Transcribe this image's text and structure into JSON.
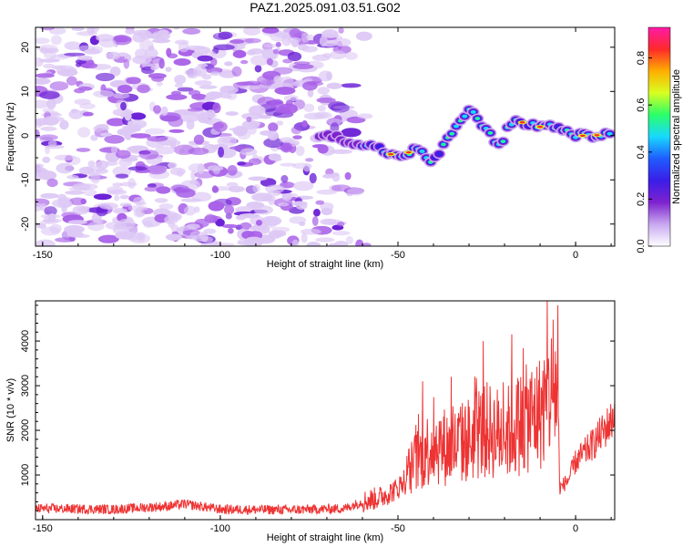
{
  "title": "PAZ1.2025.091.03.51.G02",
  "colors": {
    "snr_line": "#ee3333",
    "spectro_weak": "#ddc8f5",
    "spectro_mid": "#a860e8",
    "spectro_strong": "#6a1fd6",
    "colormap": [
      "#ffffff",
      "#c8a8f0",
      "#7e22ce",
      "#3b1de8",
      "#1f5cff",
      "#18d8ff",
      "#2bff6a",
      "#d8ff20",
      "#ffae00",
      "#ff2a2a",
      "#ff1aa8"
    ]
  },
  "chart_data": [
    {
      "type": "heatmap",
      "name": "spectrogram",
      "xlabel": "Height of straight line (km)",
      "ylabel": "Frequency (Hz)",
      "xlim": [
        -152,
        11
      ],
      "ylim": [
        -25,
        24.5
      ],
      "x_ticks": [
        -150,
        -100,
        -50,
        0
      ],
      "x_tick_labels": [
        "-150",
        "-100",
        "-50",
        "0"
      ],
      "y_ticks": [
        -20,
        -10,
        0,
        10,
        20
      ],
      "y_tick_labels": [
        "-20",
        "-10",
        "0",
        "10",
        "20"
      ],
      "noise_region_x": [
        -152,
        -60
      ],
      "signal_track": [
        {
          "x": -72,
          "y": 0.5
        },
        {
          "x": -62,
          "y": -1.5
        },
        {
          "x": -55,
          "y": -3
        },
        {
          "x": -50,
          "y": -5
        },
        {
          "x": -45,
          "y": -3
        },
        {
          "x": -40,
          "y": -6
        },
        {
          "x": -36,
          "y": -1
        },
        {
          "x": -33,
          "y": 3
        },
        {
          "x": -30,
          "y": 6
        },
        {
          "x": -27,
          "y": 3
        },
        {
          "x": -24,
          "y": 0
        },
        {
          "x": -21,
          "y": -3
        },
        {
          "x": -19,
          "y": 3
        },
        {
          "x": -15,
          "y": 3
        },
        {
          "x": -10,
          "y": 2
        },
        {
          "x": -5,
          "y": 2
        },
        {
          "x": 0,
          "y": 0
        },
        {
          "x": 5,
          "y": 0
        },
        {
          "x": 10,
          "y": 0.5
        }
      ],
      "colorbar": {
        "label": "Normalized spectral amplitude",
        "range": [
          0,
          0.93
        ],
        "ticks": [
          0,
          0.2,
          0.4,
          0.6,
          0.8
        ],
        "tick_labels": [
          "0.0",
          "0.2",
          "0.4",
          "0.6",
          "0.8"
        ]
      }
    },
    {
      "type": "line",
      "name": "snr",
      "xlabel": "Height of straight line (km)",
      "ylabel": "SNR (10 * v/v)",
      "xlim": [
        -152,
        11
      ],
      "ylim": [
        0,
        4900
      ],
      "x_ticks": [
        -150,
        -100,
        -50,
        0
      ],
      "x_tick_labels": [
        "-150",
        "-100",
        "-50",
        "0"
      ],
      "y_ticks": [
        1000,
        2000,
        3000,
        4000
      ],
      "y_tick_labels": [
        "1000",
        "2000",
        "3000",
        "4000"
      ],
      "envelope": [
        {
          "x": -152,
          "y": 250
        },
        {
          "x": -130,
          "y": 230
        },
        {
          "x": -115,
          "y": 300
        },
        {
          "x": -110,
          "y": 350
        },
        {
          "x": -100,
          "y": 230
        },
        {
          "x": -80,
          "y": 220
        },
        {
          "x": -65,
          "y": 250
        },
        {
          "x": -60,
          "y": 400
        },
        {
          "x": -55,
          "y": 500
        },
        {
          "x": -50,
          "y": 700
        },
        {
          "x": -45,
          "y": 1300
        },
        {
          "x": -40,
          "y": 1700
        },
        {
          "x": -35,
          "y": 1600
        },
        {
          "x": -30,
          "y": 1800
        },
        {
          "x": -25,
          "y": 2000
        },
        {
          "x": -20,
          "y": 1900
        },
        {
          "x": -15,
          "y": 2200
        },
        {
          "x": -10,
          "y": 2400
        },
        {
          "x": -7,
          "y": 2800
        },
        {
          "x": -5,
          "y": 3000
        },
        {
          "x": -4.5,
          "y": 700
        },
        {
          "x": -2,
          "y": 900
        },
        {
          "x": 0,
          "y": 1300
        },
        {
          "x": 5,
          "y": 1700
        },
        {
          "x": 10,
          "y": 2200
        },
        {
          "x": 11,
          "y": 2400
        }
      ],
      "peaks": [
        {
          "x": -43,
          "y": 3100
        },
        {
          "x": -35,
          "y": 3200
        },
        {
          "x": -26,
          "y": 4000
        },
        {
          "x": -18,
          "y": 4150
        },
        {
          "x": -5,
          "y": 4800
        }
      ]
    }
  ]
}
